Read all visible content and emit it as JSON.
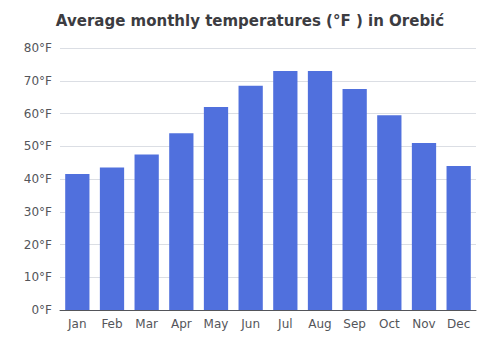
{
  "chart_data": {
    "type": "bar",
    "title": "Average monthly temperatures (°F ) in Orebić",
    "categories": [
      "Jan",
      "Feb",
      "Mar",
      "Apr",
      "May",
      "Jun",
      "Jul",
      "Aug",
      "Sep",
      "Oct",
      "Nov",
      "Dec"
    ],
    "values": [
      41.5,
      43.5,
      47.5,
      54.0,
      62.0,
      68.5,
      73.0,
      73.0,
      67.5,
      59.5,
      51.0,
      44.0
    ],
    "ylim": [
      0,
      80
    ],
    "yticks": [
      {
        "value": 0,
        "label": "0°F"
      },
      {
        "value": 10,
        "label": "10°F"
      },
      {
        "value": 20,
        "label": "20°F"
      },
      {
        "value": 30,
        "label": "30°F"
      },
      {
        "value": 40,
        "label": "40°F"
      },
      {
        "value": 50,
        "label": "50°F"
      },
      {
        "value": 60,
        "label": "60°F"
      },
      {
        "value": 70,
        "label": "70°F"
      },
      {
        "value": 80,
        "label": "80°F"
      }
    ],
    "grid": true
  }
}
